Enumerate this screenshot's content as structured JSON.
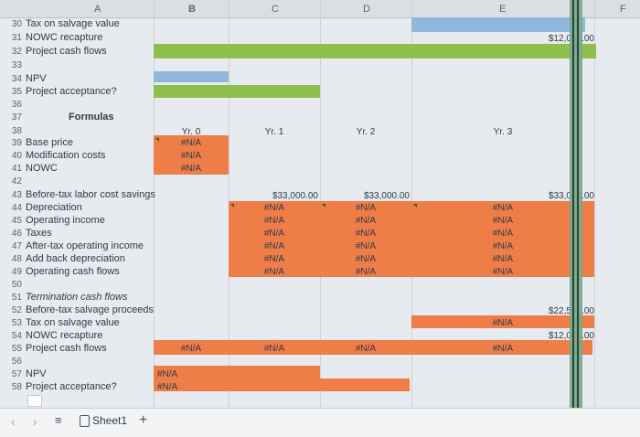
{
  "columns": [
    "A",
    "B",
    "C",
    "D",
    "E",
    "F"
  ],
  "rows_top": [
    {
      "num": "30",
      "label": "Tax on salvage value"
    },
    {
      "num": "31",
      "label": "NOWC recapture"
    },
    {
      "num": "32",
      "label": "Project cash flows"
    },
    {
      "num": "33",
      "label": ""
    },
    {
      "num": "34",
      "label": "NPV"
    },
    {
      "num": "35",
      "label": "Project acceptance?"
    },
    {
      "num": "36",
      "label": ""
    },
    {
      "num": "37",
      "label": "Formulas"
    }
  ],
  "top_values": {
    "E31": "$12,000.00"
  },
  "years": {
    "b": "Yr. 0",
    "c": "Yr. 1",
    "d": "Yr. 2",
    "e": "Yr. 3"
  },
  "rows_formulas_top": [
    {
      "num": "38",
      "label": ""
    },
    {
      "num": "39",
      "label": "Base price"
    },
    {
      "num": "40",
      "label": "Modification costs"
    },
    {
      "num": "41",
      "label": "NOWC"
    },
    {
      "num": "42",
      "label": ""
    }
  ],
  "na": "#N/A",
  "rows_mid": [
    {
      "num": "43",
      "label": "Before-tax labor cost savings"
    },
    {
      "num": "44",
      "label": "Depreciation"
    },
    {
      "num": "45",
      "label": "Operating income"
    },
    {
      "num": "46",
      "label": "Taxes"
    },
    {
      "num": "47",
      "label": "After-tax operating income"
    },
    {
      "num": "48",
      "label": "Add back depreciation"
    },
    {
      "num": "49",
      "label": "Operating cash flows"
    },
    {
      "num": "50",
      "label": ""
    },
    {
      "num": "51",
      "label": "Termination cash flows"
    },
    {
      "num": "52",
      "label": "Before-tax salvage proceeds"
    },
    {
      "num": "53",
      "label": "Tax on salvage value"
    },
    {
      "num": "54",
      "label": "NOWC recapture"
    },
    {
      "num": "55",
      "label": "Project cash flows"
    },
    {
      "num": "56",
      "label": ""
    },
    {
      "num": "57",
      "label": "NPV"
    },
    {
      "num": "58",
      "label": "Project acceptance?"
    }
  ],
  "mid_values": {
    "savings": "$33,000.00",
    "E52": "$22,500.00",
    "E54": "$12,000.00"
  },
  "footer": {
    "sheet": "Sheet1",
    "add": "+",
    "menu": "≡"
  }
}
